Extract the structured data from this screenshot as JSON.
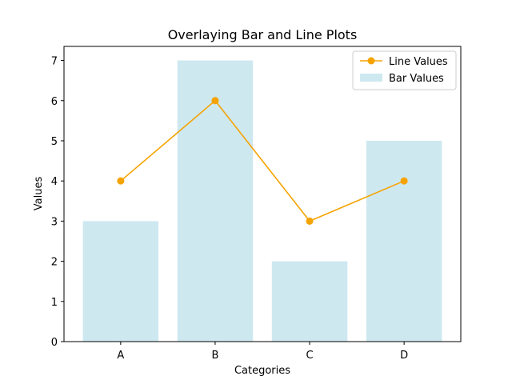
{
  "chart_data": {
    "type": "bar",
    "title": "Overlaying Bar and Line Plots",
    "xlabel": "Categories",
    "ylabel": "Values",
    "categories": [
      "A",
      "B",
      "C",
      "D"
    ],
    "ylim": [
      0,
      7.35
    ],
    "yticks": [
      0,
      1,
      2,
      3,
      4,
      5,
      6,
      7
    ],
    "grid": false,
    "legend_position": "top-right",
    "series": [
      {
        "name": "Line Values",
        "type": "line",
        "values": [
          4,
          6,
          3,
          4
        ],
        "color": "#f5a300",
        "marker": "circle"
      },
      {
        "name": "Bar Values",
        "type": "bar",
        "values": [
          3,
          7,
          2,
          5
        ],
        "color": "#add8e6",
        "opacity": 0.6
      }
    ]
  }
}
